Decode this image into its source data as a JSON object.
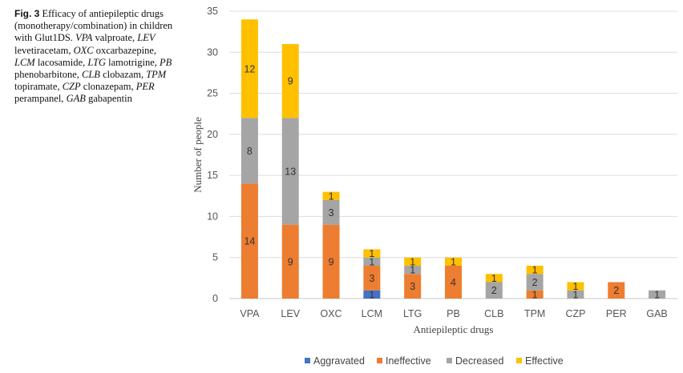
{
  "caption": {
    "fig_label": "Fig. 3",
    "title_text": "Efficacy of antiepileptic drugs (monotherapy/combination) in children with Glut1DS.",
    "abbreviations": [
      {
        "abbr": "VPA",
        "desc": "valproate,"
      },
      {
        "abbr": "LEV",
        "desc": "levetiracetam,"
      },
      {
        "abbr": "OXC",
        "desc": "oxcarbazepine,"
      },
      {
        "abbr": "LCM",
        "desc": "lacosamide,"
      },
      {
        "abbr": "LTG",
        "desc": "lamotrigine,"
      },
      {
        "abbr": "PB",
        "desc": "phenobarbitone,"
      },
      {
        "abbr": "CLB",
        "desc": "clobazam,"
      },
      {
        "abbr": "TPM",
        "desc": "topiramate,"
      },
      {
        "abbr": "CZP",
        "desc": "clonazepam,"
      },
      {
        "abbr": "PER",
        "desc": "perampanel,"
      },
      {
        "abbr": "GAB",
        "desc": "gabapentin"
      }
    ]
  },
  "chart_data": {
    "type": "bar",
    "stacked": true,
    "xlabel": "Antiepileptic drugs",
    "ylabel": "Number of people",
    "ylim": [
      0,
      35
    ],
    "yticks": [
      0,
      5,
      10,
      15,
      20,
      25,
      30,
      35
    ],
    "grid": true,
    "legend_position": "bottom",
    "categories": [
      "VPA",
      "LEV",
      "OXC",
      "LCM",
      "LTG",
      "PB",
      "CLB",
      "TPM",
      "CZP",
      "PER",
      "GAB"
    ],
    "series": [
      {
        "name": "Aggravated",
        "color": "#4472C4",
        "values": [
          0,
          0,
          0,
          1,
          0,
          0,
          0,
          0,
          0,
          0,
          0
        ]
      },
      {
        "name": "Ineffective",
        "color": "#ED7D31",
        "values": [
          14,
          9,
          9,
          3,
          3,
          4,
          0,
          1,
          0,
          2,
          0
        ]
      },
      {
        "name": "Decreased",
        "color": "#A5A5A5",
        "values": [
          8,
          13,
          3,
          1,
          1,
          0,
          2,
          2,
          1,
          0,
          1
        ]
      },
      {
        "name": "Effective",
        "color": "#FFC000",
        "values": [
          12,
          9,
          1,
          1,
          1,
          1,
          1,
          1,
          1,
          0,
          0
        ]
      }
    ]
  }
}
